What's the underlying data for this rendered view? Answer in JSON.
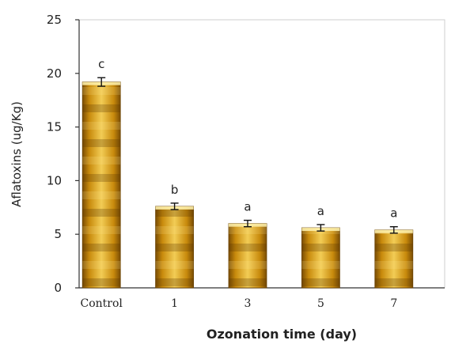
{
  "chart_data": {
    "type": "bar",
    "xlabel": "Ozonation time (day)",
    "ylabel": "Aflatoxins (ug/Kg)",
    "ylim": [
      0,
      25
    ],
    "yticks": [
      0,
      5,
      10,
      15,
      20,
      25
    ],
    "categories": [
      "Control",
      "1",
      "3",
      "5",
      "7"
    ],
    "values": [
      19.2,
      7.6,
      6.0,
      5.6,
      5.4
    ],
    "errors": [
      0.4,
      0.3,
      0.3,
      0.3,
      0.3
    ],
    "significance_labels": [
      "c",
      "b",
      "a",
      "a",
      "a"
    ],
    "grid": false,
    "legend": "none",
    "bar_color": "#c8900e",
    "bar_highlight": "#f6d86a",
    "bar_shadow": "#8a5a06"
  }
}
